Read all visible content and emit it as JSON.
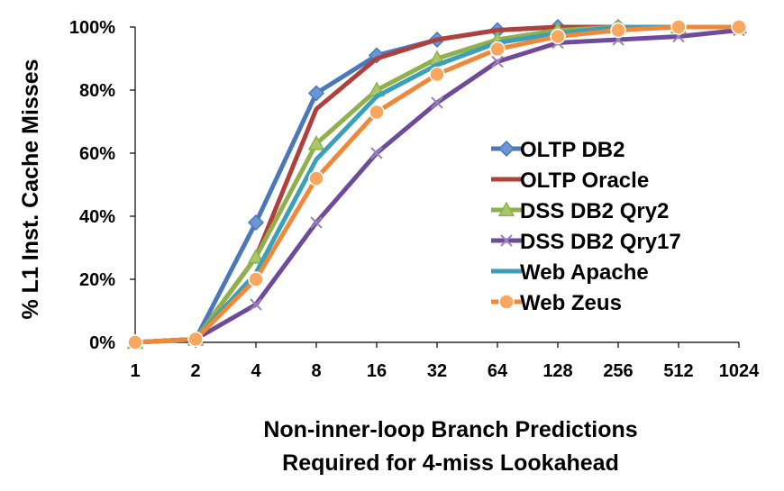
{
  "chart_data": {
    "type": "line",
    "title": "",
    "x": [
      "1",
      "2",
      "4",
      "8",
      "16",
      "32",
      "64",
      "128",
      "256",
      "512",
      "1024"
    ],
    "xlabel_lines": [
      "Non-inner-loop Branch Predictions",
      "Required for 4-miss Lookahead"
    ],
    "ylabel": "% L1 Inst. Cache Misses",
    "ylim": [
      0,
      100
    ],
    "yticks": [
      "0%",
      "20%",
      "40%",
      "60%",
      "80%",
      "100%"
    ],
    "grid": false,
    "legend_position": "right",
    "series": [
      {
        "name": "OLTP DB2",
        "color": "#4a78b8",
        "marker": "diamond",
        "values": [
          0,
          1,
          38,
          79,
          91,
          96,
          99,
          100,
          100,
          100,
          100
        ]
      },
      {
        "name": "OLTP Oracle",
        "color": "#b0403c",
        "marker": "none",
        "values": [
          0,
          1,
          27,
          74,
          90,
          96,
          99,
          100,
          100,
          100,
          100
        ]
      },
      {
        "name": "DSS DB2 Qry2",
        "color": "#8fb04a",
        "marker": "triangle",
        "values": [
          0,
          1,
          27,
          63,
          80,
          90,
          96,
          99,
          100,
          100,
          100
        ]
      },
      {
        "name": "DSS DB2 Qry17",
        "color": "#6e4a9a",
        "marker": "x",
        "values": [
          0,
          1,
          12,
          38,
          60,
          76,
          89,
          95,
          96,
          97,
          99
        ]
      },
      {
        "name": "Web Apache",
        "color": "#3a9fb8",
        "marker": "none",
        "values": [
          0,
          1,
          22,
          58,
          78,
          88,
          95,
          98,
          100,
          100,
          100
        ]
      },
      {
        "name": "Web Zeus",
        "color": "#f0883a",
        "marker": "circle",
        "values": [
          0,
          1,
          20,
          52,
          73,
          85,
          93,
          97,
          99,
          100,
          100
        ]
      }
    ]
  }
}
